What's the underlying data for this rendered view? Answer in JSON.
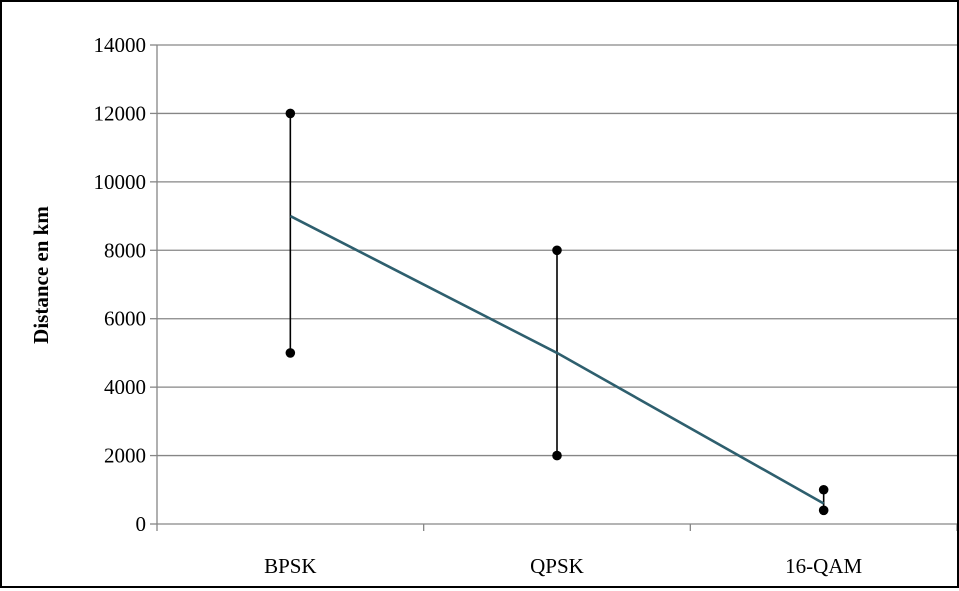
{
  "chart_data": {
    "type": "line",
    "title": "",
    "xlabel": "",
    "ylabel": "Distance en km",
    "categories": [
      "BPSK",
      "QPSK",
      "16-QAM"
    ],
    "series": [
      {
        "values": [
          9000,
          5000,
          600
        ],
        "color": "#2e5f6e"
      }
    ],
    "ranges": {
      "high": [
        12000,
        8000,
        1000
      ],
      "low": [
        5000,
        2000,
        400
      ],
      "color": "#000000"
    },
    "ylim": [
      0,
      14000
    ],
    "yticks": [
      0,
      2000,
      4000,
      6000,
      8000,
      10000,
      12000,
      14000
    ],
    "grid": true,
    "legend": "none"
  }
}
